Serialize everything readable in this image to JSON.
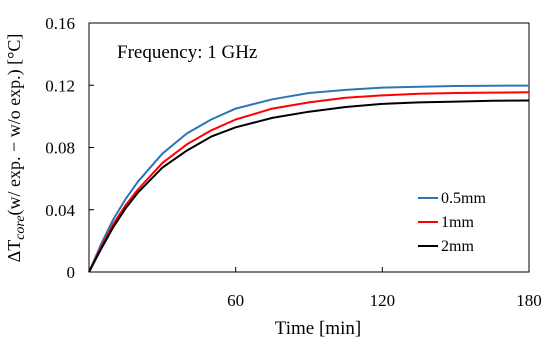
{
  "chart_data": {
    "type": "line",
    "annotation": "Frequency: 1 GHz",
    "xlabel": "Time [min]",
    "ylabel": {
      "prefix": "ΔT",
      "subscript": "core",
      "suffix": "(w/ exp. − w/o exp.) [°C]"
    },
    "xlim": [
      0,
      180
    ],
    "ylim": [
      0,
      0.16
    ],
    "x_ticks": [
      60,
      120,
      180
    ],
    "x_tick_labels": [
      "60",
      "120",
      "180"
    ],
    "y_ticks": [
      0,
      0.04,
      0.08,
      0.12,
      0.16
    ],
    "y_tick_labels": [
      "0",
      "0.04",
      "0.08",
      "0.12",
      "0.16"
    ],
    "grid": false,
    "legend_position": "bottom-right",
    "x": [
      0,
      5,
      10,
      15,
      20,
      30,
      40,
      50,
      60,
      75,
      90,
      105,
      120,
      135,
      150,
      165,
      180
    ],
    "series": [
      {
        "name": "0.5mm",
        "color": "#2e75b6",
        "values": [
          0,
          0.018,
          0.034,
          0.047,
          0.058,
          0.076,
          0.089,
          0.098,
          0.105,
          0.111,
          0.115,
          0.117,
          0.1185,
          0.119,
          0.1195,
          0.1197,
          0.1198
        ]
      },
      {
        "name": "1mm",
        "color": "#ff0000",
        "values": [
          0,
          0.016,
          0.031,
          0.043,
          0.053,
          0.07,
          0.082,
          0.091,
          0.098,
          0.105,
          0.109,
          0.112,
          0.1135,
          0.1145,
          0.115,
          0.1153,
          0.1155
        ]
      },
      {
        "name": "2mm",
        "color": "#000000",
        "values": [
          0,
          0.015,
          0.029,
          0.041,
          0.051,
          0.067,
          0.078,
          0.087,
          0.093,
          0.099,
          0.103,
          0.106,
          0.108,
          0.109,
          0.1095,
          0.11,
          0.1102
        ]
      }
    ]
  }
}
